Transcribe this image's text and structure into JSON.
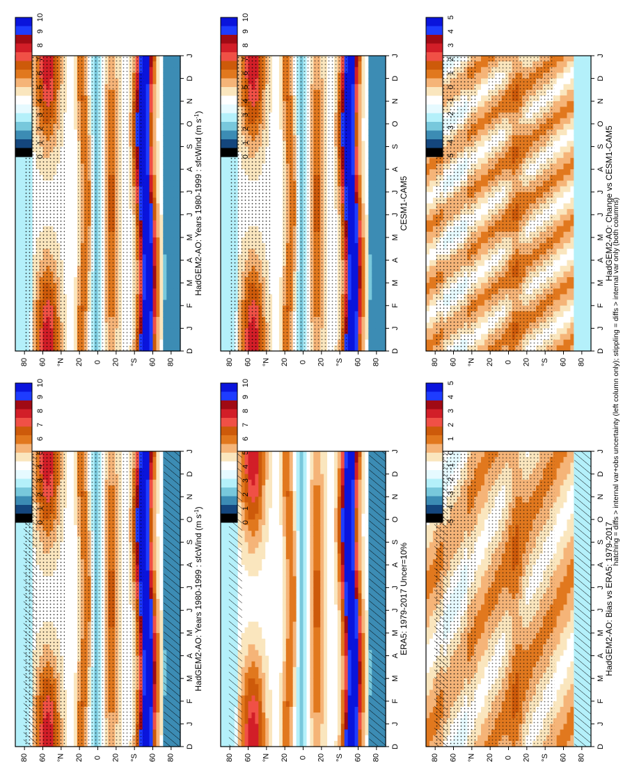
{
  "footer_note": "hatching = diffs > internal var+obs uncertainty (left column only); stippling = diffs > internal var only (both columns)",
  "chart_data": [
    {
      "type": "heatmap",
      "id": "p_model_left",
      "title": "HadGEM2-AO: Years 1980-1999 : sfcWind (m s-1)",
      "title_main": "HadGEM2-AO: Years 1980-1999 : sfcWind (m s",
      "title_sup": "-1",
      "title_end": ")",
      "x_ticks": [
        "D",
        "J",
        "F",
        "M",
        "A",
        "M",
        "J",
        "J",
        "A",
        "S",
        "O",
        "N",
        "D",
        "J"
      ],
      "y_ticks": [
        "80",
        "60",
        "°N",
        "20",
        "0",
        "20",
        "°S",
        "60",
        "80"
      ],
      "colorbar": [
        10,
        9,
        8,
        7,
        6,
        5,
        4,
        3,
        2,
        1,
        0
      ],
      "field": "climatology",
      "hatching": true,
      "stippling": true
    },
    {
      "type": "heatmap",
      "id": "p_obs",
      "title": "ERA5: 1979-2017 Uncer=10%",
      "x_ticks": [
        "D",
        "J",
        "F",
        "M",
        "A",
        "M",
        "J",
        "J",
        "A",
        "S",
        "O",
        "N",
        "D",
        "J"
      ],
      "y_ticks": [
        "80",
        "60",
        "°N",
        "20",
        "0",
        "20",
        "°S",
        "60",
        "80"
      ],
      "colorbar": [
        10,
        9,
        8,
        7,
        6,
        5,
        4,
        3,
        2,
        1,
        0
      ],
      "field": "climatology",
      "hatching": true,
      "stippling": false
    },
    {
      "type": "heatmap",
      "id": "p_bias",
      "title": "HadGEM2-AO: Bias vs ERA5: 1979-2017",
      "x_ticks": [
        "D",
        "J",
        "F",
        "M",
        "A",
        "M",
        "J",
        "J",
        "A",
        "S",
        "O",
        "N",
        "D",
        "J"
      ],
      "y_ticks": [
        "80",
        "60",
        "°N",
        "20",
        "0",
        "20",
        "°S",
        "60",
        "80"
      ],
      "colorbar": [
        5,
        4,
        3,
        2,
        1,
        0,
        -1,
        -2,
        -3,
        -4,
        -5
      ],
      "field": "bias",
      "hatching": true,
      "stippling": true
    },
    {
      "type": "heatmap",
      "id": "p_model_right",
      "title": "HadGEM2-AO: Years 1980-1999 : sfcWind (m s-1)",
      "title_main": "HadGEM2-AO: Years 1980-1999 : sfcWind (m s",
      "title_sup": "-1",
      "title_end": ")",
      "x_ticks": [
        "D",
        "J",
        "F",
        "M",
        "A",
        "M",
        "J",
        "J",
        "A",
        "S",
        "O",
        "N",
        "D",
        "J"
      ],
      "y_ticks": [
        "80",
        "60",
        "°N",
        "20",
        "0",
        "20",
        "°S",
        "60",
        "80"
      ],
      "colorbar": [
        10,
        9,
        8,
        7,
        6,
        5,
        4,
        3,
        2,
        1,
        0
      ],
      "field": "climatology",
      "hatching": false,
      "stippling": true
    },
    {
      "type": "heatmap",
      "id": "p_cesm",
      "title": "CESM1-CAM5",
      "x_ticks": [
        "D",
        "J",
        "F",
        "M",
        "A",
        "M",
        "J",
        "J",
        "A",
        "S",
        "O",
        "N",
        "D",
        "J"
      ],
      "y_ticks": [
        "80",
        "60",
        "°N",
        "20",
        "0",
        "20",
        "°S",
        "60",
        "80"
      ],
      "colorbar": [
        10,
        9,
        8,
        7,
        6,
        5,
        4,
        3,
        2,
        1,
        0
      ],
      "field": "climatology",
      "hatching": false,
      "stippling": true
    },
    {
      "type": "heatmap",
      "id": "p_change",
      "title": "HadGEM2-AO: Change vs CESM1-CAM5",
      "x_ticks": [
        "D",
        "J",
        "F",
        "M",
        "A",
        "M",
        "J",
        "J",
        "A",
        "S",
        "O",
        "N",
        "D",
        "J"
      ],
      "y_ticks": [
        "80",
        "60",
        "°N",
        "20",
        "0",
        "20",
        "°S",
        "60",
        "80"
      ],
      "colorbar": [
        5,
        4,
        3,
        2,
        1,
        0,
        -1,
        -2,
        -3,
        -4,
        -5
      ],
      "field": "change",
      "hatching": false,
      "stippling": true
    }
  ],
  "palette": [
    "#0a14dc",
    "#1e3cff",
    "#a00a14",
    "#d21e28",
    "#f05046",
    "#cd5a0a",
    "#e1781e",
    "#f5b478",
    "#fae6be",
    "#ffffff",
    "#e6faff",
    "#b4f0fa",
    "#78c8dc",
    "#3c8cb4",
    "#14467d",
    "#000000"
  ]
}
